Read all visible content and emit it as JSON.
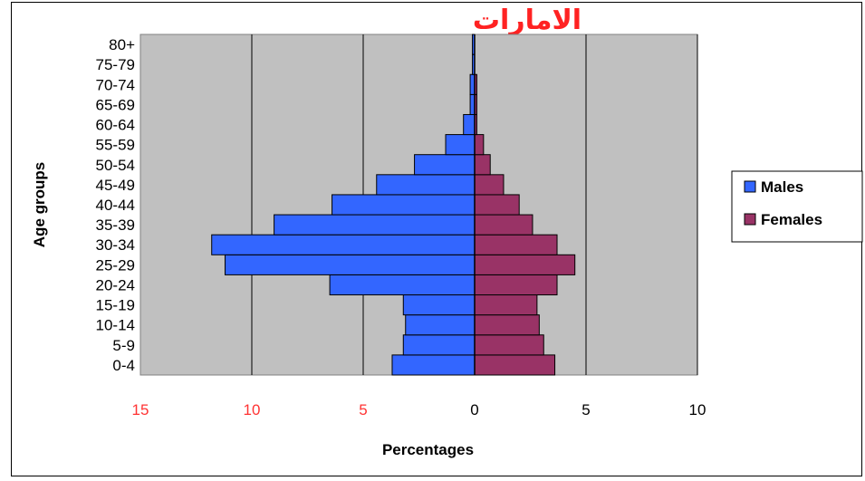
{
  "chart_data": {
    "type": "bar",
    "orientation": "horizontal-population-pyramid",
    "annotation": "الامارات",
    "categories": [
      "0-4",
      "5-9",
      "10-14",
      "15-19",
      "20-24",
      "25-29",
      "30-34",
      "35-39",
      "40-44",
      "45-49",
      "50-54",
      "55-59",
      "60-64",
      "65-69",
      "70-74",
      "75-79",
      "80+"
    ],
    "series": [
      {
        "name": "Males",
        "color": "#3366ff",
        "values": [
          3.7,
          3.2,
          3.1,
          3.2,
          6.5,
          11.2,
          11.8,
          9.0,
          6.4,
          4.4,
          2.7,
          1.3,
          0.5,
          0.2,
          0.2,
          0.1,
          0.1
        ]
      },
      {
        "name": "Females",
        "color": "#993366",
        "values": [
          3.6,
          3.1,
          2.9,
          2.8,
          3.7,
          4.5,
          3.7,
          2.6,
          2.0,
          1.3,
          0.7,
          0.4,
          0.1,
          0.1,
          0.1,
          0.0,
          0.0
        ]
      }
    ],
    "xticks": [
      {
        "label": "15",
        "value": -15,
        "color": "#ff3333"
      },
      {
        "label": "10",
        "value": -10,
        "color": "#ff3333"
      },
      {
        "label": "5",
        "value": -5,
        "color": "#ff3333"
      },
      {
        "label": "0",
        "value": 0,
        "color": "#000000"
      },
      {
        "label": "5",
        "value": 5,
        "color": "#000000"
      },
      {
        "label": "10",
        "value": 10,
        "color": "#000000"
      }
    ],
    "xlim": [
      -15,
      10
    ],
    "xlabel": "Percentages",
    "ylabel": "Age groups",
    "grid": true,
    "plot_background": "#c0c0c0",
    "legend_position": "right"
  }
}
